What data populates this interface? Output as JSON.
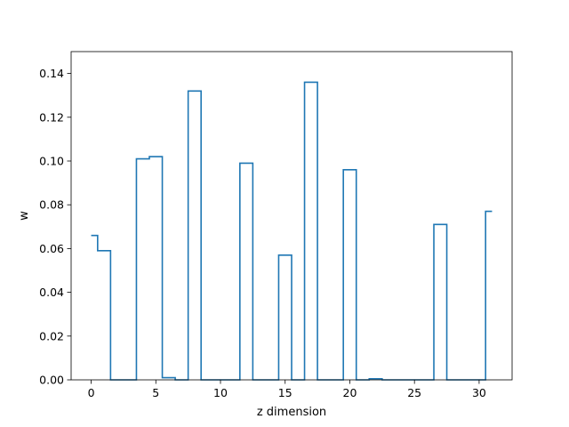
{
  "chart_data": {
    "type": "line",
    "drawstyle": "steps-mid",
    "xlabel": "z dimension",
    "ylabel": "w",
    "xlim": [
      -1.55,
      32.55
    ],
    "ylim": [
      0,
      0.15
    ],
    "xticks": [
      0,
      5,
      10,
      15,
      20,
      25,
      30
    ],
    "yticks": [
      0.0,
      0.02,
      0.04,
      0.06,
      0.08,
      0.1,
      0.12,
      0.14
    ],
    "ytick_labels": [
      "0.00",
      "0.02",
      "0.04",
      "0.06",
      "0.08",
      "0.10",
      "0.12",
      "0.14"
    ],
    "grid": false,
    "color": "#1f77b4",
    "series": [
      {
        "x": [
          0,
          1,
          2,
          3,
          4,
          5,
          6,
          7,
          8,
          9,
          10,
          11,
          12,
          13,
          14,
          15,
          16,
          17,
          18,
          19,
          20,
          21,
          22,
          23,
          24,
          25,
          26,
          27,
          28,
          29,
          30,
          31
        ],
        "values": [
          0.066,
          0.059,
          0.0,
          0.0,
          0.101,
          0.102,
          0.001,
          0.0,
          0.132,
          0.0,
          0.0,
          0.0,
          0.099,
          0.0,
          0.0,
          0.057,
          0.0,
          0.136,
          0.0,
          0.0,
          0.096,
          0.0,
          0.0005,
          0.0,
          0.0,
          0.0,
          0.0,
          0.071,
          0.0,
          0.0,
          0.0,
          0.077
        ]
      }
    ]
  }
}
